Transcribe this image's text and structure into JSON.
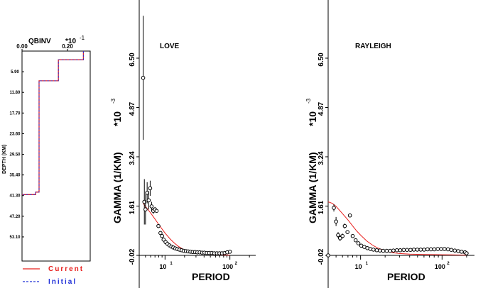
{
  "chart_data": [
    {
      "type": "line",
      "panel": "qbinv",
      "title": "QBINV",
      "x_scale": "*10",
      "x_scale_exp": "-1",
      "ylabel": "DEPTH (KM)",
      "xlim": [
        0,
        0.3
      ],
      "ylim": [
        0,
        60
      ],
      "x_ticks": [
        "0.00",
        "0.20"
      ],
      "x_tick_values": [
        0,
        0.2
      ],
      "y_ticks": [
        "5.90",
        "11.80",
        "17.70",
        "23.60",
        "29.50",
        "35.40",
        "41.30",
        "47.20",
        "53.10"
      ],
      "y_tick_values": [
        5.9,
        11.8,
        17.7,
        23.6,
        29.5,
        35.4,
        41.3,
        47.2,
        53.1
      ],
      "series": [
        {
          "name": "Current",
          "color": "#e8201e",
          "step_x": [
            0.27,
            0.27,
            0.16,
            0.16,
            0.075,
            0.075,
            0.06,
            0.06,
            0
          ],
          "step_y": [
            0,
            2.5,
            2.5,
            8.5,
            8.5,
            40.3,
            40.3,
            41.0,
            41.0
          ]
        },
        {
          "name": "Initial",
          "color": "#2030d8",
          "step_x": [
            0.27,
            0.27,
            0.16,
            0.16,
            0.075,
            0.075,
            0.06,
            0.06,
            0
          ],
          "step_y": [
            0,
            2.5,
            2.5,
            8.5,
            8.5,
            40.3,
            40.3,
            41.0,
            41.0
          ]
        }
      ]
    },
    {
      "type": "scatter",
      "panel": "love",
      "title": "LOVE",
      "xlabel": "PERIOD",
      "ylabel": "GAMMA (1/KM)",
      "y_scale": "*10",
      "y_scale_exp": "-3",
      "x_log": true,
      "xlim": [
        4,
        250
      ],
      "ylim": [
        -0.02,
        6.5
      ],
      "y_ticks": [
        "-0.02",
        "1.61",
        "3.24",
        "4.87",
        "6.50"
      ],
      "y_tick_values": [
        -0.02,
        1.61,
        3.24,
        4.87,
        6.5
      ],
      "x_ticks": [
        "10",
        "100"
      ],
      "x_tick_values": [
        10,
        100
      ],
      "x_tick_exp": "1",
      "x_tick_exp2": "2",
      "observed": {
        "x": [
          4.6,
          4.8,
          5.0,
          5.3,
          5.6,
          5.9,
          6.2,
          6.6,
          7.0,
          7.4,
          7.9,
          8.5,
          9.0,
          9.5,
          10.2,
          10.9,
          11.7,
          12.5,
          13.4,
          14.4,
          15.5,
          16.7,
          18.0,
          19.4,
          21.0,
          22.7,
          24.6,
          26.7,
          29.0,
          31.5,
          34.2,
          37.2,
          40.5,
          44.0,
          48.0,
          52.5,
          57.5,
          63.0,
          69.0,
          75.5,
          83.0,
          91.0,
          100.0
        ],
        "y": [
          5.85,
          1.75,
          1.5,
          2.05,
          1.8,
          2.2,
          1.6,
          1.45,
          1.5,
          1.45,
          0.95,
          0.72,
          0.62,
          0.5,
          0.42,
          0.36,
          0.31,
          0.27,
          0.24,
          0.21,
          0.19,
          0.17,
          0.15,
          0.13,
          0.12,
          0.11,
          0.1,
          0.09,
          0.09,
          0.08,
          0.08,
          0.07,
          0.07,
          0.06,
          0.06,
          0.06,
          0.05,
          0.05,
          0.05,
          0.05,
          0.06,
          0.08,
          0.1
        ],
        "err": [
          2.05,
          0.75,
          0.5,
          0.35,
          0.3,
          0.25,
          0.15,
          0.1,
          0.08,
          0.06,
          0.05,
          0.04,
          0.03,
          0.03,
          0.02,
          0.02,
          0.02,
          0.02,
          0.02,
          0.02,
          0.02,
          0.02,
          0.02,
          0.02,
          0.02,
          0.02,
          0.02,
          0.02,
          0.02,
          0.02,
          0.02,
          0.02,
          0.02,
          0.02,
          0.02,
          0.02,
          0.02,
          0.02,
          0.02,
          0.02,
          0.02,
          0.02,
          0.02
        ]
      },
      "model": {
        "x": [
          4.6,
          5,
          6,
          7,
          8,
          9,
          10,
          12,
          14,
          16,
          18,
          20,
          25,
          30,
          40,
          50,
          60,
          70,
          80,
          90,
          100
        ],
        "y": [
          1.7,
          1.6,
          1.38,
          1.18,
          1.0,
          0.85,
          0.72,
          0.52,
          0.38,
          0.28,
          0.21,
          0.16,
          0.09,
          0.06,
          0.03,
          0.015,
          0.005,
          0.0,
          -0.005,
          -0.01,
          -0.01
        ]
      }
    },
    {
      "type": "scatter",
      "panel": "rayleigh",
      "title": "RAYLEIGH",
      "xlabel": "PERIOD",
      "ylabel": "GAMMA (1/KM)",
      "y_scale": "*10",
      "y_scale_exp": "-3",
      "x_log": true,
      "xlim": [
        4,
        250
      ],
      "ylim": [
        -0.02,
        6.5
      ],
      "y_ticks": [
        "-0.02",
        "1.61",
        "3.24",
        "4.87",
        "6.50"
      ],
      "y_tick_values": [
        -0.02,
        1.61,
        3.24,
        4.87,
        6.5
      ],
      "x_ticks": [
        "10",
        "100"
      ],
      "x_tick_values": [
        10,
        100
      ],
      "x_tick_exp": "1",
      "x_tick_exp2": "2",
      "observed": {
        "x": [
          4.0,
          4.7,
          5.0,
          5.3,
          5.6,
          6.0,
          6.4,
          6.9,
          7.4,
          8.0,
          8.7,
          9.4,
          10.2,
          11.1,
          12.1,
          13.2,
          14.4,
          15.8,
          17.3,
          19.0,
          20.9,
          23.0,
          25.3,
          27.9,
          30.7,
          33.8,
          37.2,
          41.0,
          45.1,
          49.7,
          54.7,
          60.2,
          66.3,
          73.0,
          80.4,
          88.5,
          97.5,
          107.3,
          118.2,
          130.1,
          143.3,
          157.8,
          173.8,
          191.4,
          200.0
        ],
        "y": [
          -0.02,
          1.55,
          1.1,
          0.65,
          0.55,
          0.62,
          0.95,
          0.75,
          1.3,
          0.62,
          0.48,
          0.38,
          0.3,
          0.26,
          0.22,
          0.19,
          0.17,
          0.15,
          0.14,
          0.13,
          0.13,
          0.13,
          0.14,
          0.15,
          0.15,
          0.16,
          0.16,
          0.16,
          0.17,
          0.17,
          0.17,
          0.17,
          0.18,
          0.18,
          0.18,
          0.19,
          0.19,
          0.19,
          0.18,
          0.16,
          0.14,
          0.12,
          0.1,
          0.08,
          0.05
        ],
        "err": [
          0.02,
          0.12,
          0.15,
          0.1,
          0.1,
          0.08,
          0.08,
          0.06,
          0.06,
          0.05,
          0.04,
          0.03,
          0.02,
          0.02,
          0.02,
          0.02,
          0.02,
          0.02,
          0.02,
          0.02,
          0.02,
          0.02,
          0.02,
          0.02,
          0.02,
          0.02,
          0.02,
          0.02,
          0.02,
          0.02,
          0.02,
          0.02,
          0.02,
          0.02,
          0.02,
          0.02,
          0.02,
          0.02,
          0.02,
          0.02,
          0.02,
          0.02,
          0.02,
          0.02,
          0.02
        ]
      },
      "model": {
        "x": [
          4.0,
          4.5,
          5,
          6,
          7,
          8,
          9,
          10,
          12,
          14,
          16,
          20,
          25,
          30,
          40,
          60,
          100,
          200
        ],
        "y": [
          1.75,
          1.7,
          1.6,
          1.36,
          1.15,
          0.95,
          0.78,
          0.65,
          0.45,
          0.32,
          0.23,
          0.13,
          0.07,
          0.04,
          0.02,
          0.01,
          0.0,
          -0.01
        ]
      }
    }
  ],
  "legend": {
    "current": {
      "label": "Current",
      "color": "#e8201e"
    },
    "initial": {
      "label": "Initial",
      "color": "#2030d8"
    }
  }
}
